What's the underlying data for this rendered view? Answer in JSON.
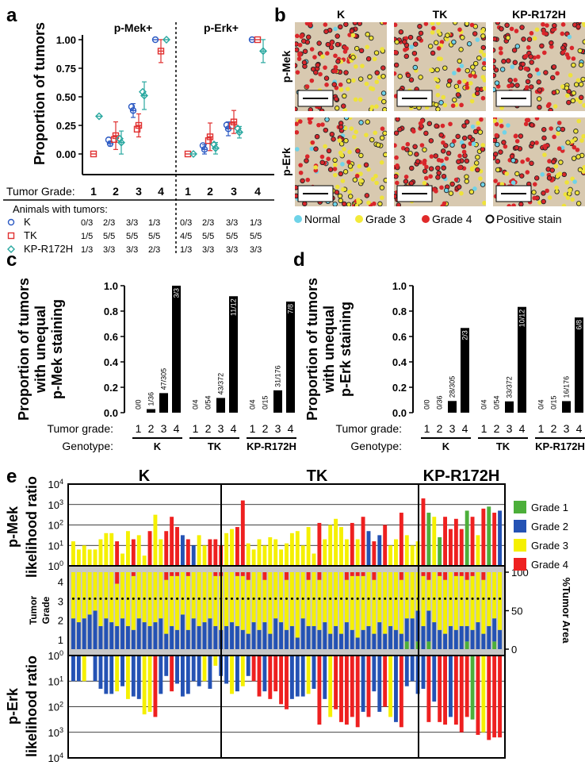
{
  "panels": {
    "a": "a",
    "b": "b",
    "c": "c",
    "d": "d",
    "e": "e"
  },
  "chart_data": [
    {
      "id": "a",
      "type": "scatter",
      "ylabel": "Proportion of tumors",
      "groups": [
        "p-Mek+",
        "p-Erk+"
      ],
      "yticks": [
        "0.00",
        "0.25",
        "0.50",
        "0.75",
        "1.00"
      ],
      "ylim": [
        0,
        1.08
      ],
      "tumor_grade_label": "Tumor Grade:",
      "grades": [
        "1",
        "2",
        "3",
        "4"
      ],
      "animals_label": "Animals with tumors:",
      "series": [
        {
          "name": "K",
          "color": "#2b59c3",
          "marker": "circle",
          "mek": [
            null,
            0.09,
            0.38,
            1.0
          ],
          "erk": [
            null,
            0.04,
            0.22,
            1.0
          ],
          "mek_err": [
            0,
            0.02,
            0.06,
            0
          ],
          "erk_err": [
            0,
            0.04,
            0.06,
            0
          ],
          "counts_mek": [
            "0/3",
            "2/3",
            "3/3",
            "1/3"
          ],
          "counts_erk": [
            "0/3",
            "2/3",
            "3/3",
            "1/3"
          ]
        },
        {
          "name": "TK",
          "color": "#e03030",
          "marker": "square",
          "mek": [
            0.0,
            0.16,
            0.25,
            0.9
          ],
          "erk": [
            0.0,
            0.15,
            0.28,
            1.0
          ],
          "mek_err": [
            0,
            0.12,
            0.1,
            0.1
          ],
          "erk_err": [
            0,
            0.12,
            0.1,
            0
          ],
          "counts_mek": [
            "1/5",
            "5/5",
            "5/5",
            "5/5"
          ],
          "counts_erk": [
            "4/5",
            "5/5",
            "5/5",
            "5/5"
          ]
        },
        {
          "name": "KP-R172H",
          "color": "#2aa8a0",
          "marker": "diamond",
          "mek": [
            0.33,
            0.1,
            0.51,
            1.0
          ],
          "erk": [
            0.0,
            0.05,
            0.19,
            0.9
          ],
          "mek_err": [
            0,
            0.1,
            0.12,
            0
          ],
          "erk_err": [
            0,
            0.05,
            0.05,
            0.1
          ],
          "counts_mek": [
            "1/3",
            "3/3",
            "3/3",
            "2/3"
          ],
          "counts_erk": [
            "1/3",
            "3/3",
            "3/3",
            "3/3"
          ]
        }
      ]
    },
    {
      "id": "c",
      "type": "bar",
      "ylabel": [
        "Proportion of tumors",
        "with unequal",
        "p-Mek staining"
      ],
      "yticks": [
        "0.0",
        "0.2",
        "0.4",
        "0.6",
        "0.8",
        "1.0"
      ],
      "ylim": [
        0,
        1.0
      ],
      "xlabel_grade": "Tumor grade:",
      "xlabel_genotype": "Genotype:",
      "genotypes": [
        "K",
        "TK",
        "KP-R172H"
      ],
      "grades": [
        "1",
        "2",
        "3",
        "4"
      ],
      "values": [
        [
          0,
          0.028,
          0.154,
          1.0
        ],
        [
          0,
          0,
          0.116,
          0.917
        ],
        [
          0,
          0,
          0.176,
          0.875
        ]
      ],
      "labels": [
        [
          "0/0",
          "1/36",
          "47/305",
          "3/3"
        ],
        [
          "0/4",
          "0/54",
          "43/372",
          "11/12"
        ],
        [
          "0/4",
          "0/15",
          "31/176",
          "7/8"
        ]
      ]
    },
    {
      "id": "d",
      "type": "bar",
      "ylabel": [
        "Proportion of tumors",
        "with unequal",
        "p-Erk staining"
      ],
      "yticks": [
        "0.0",
        "0.2",
        "0.4",
        "0.6",
        "0.8",
        "1.0"
      ],
      "ylim": [
        0,
        1.0
      ],
      "xlabel_grade": "Tumor grade:",
      "xlabel_genotype": "Genotype:",
      "genotypes": [
        "K",
        "TK",
        "KP-R172H"
      ],
      "grades": [
        "1",
        "2",
        "3",
        "4"
      ],
      "values": [
        [
          0,
          0,
          0.092,
          0.667
        ],
        [
          0,
          0,
          0.089,
          0.833
        ],
        [
          0,
          0,
          0.091,
          0.75
        ]
      ],
      "labels": [
        [
          "0/0",
          "0/36",
          "28/305",
          "2/3"
        ],
        [
          "0/4",
          "0/54",
          "33/372",
          "10/12"
        ],
        [
          "0/4",
          "0/15",
          "16/176",
          "6/8"
        ]
      ]
    },
    {
      "id": "e",
      "type": "bar",
      "columns": [
        "K",
        "TK",
        "KP-R172H"
      ],
      "top_ylabel": [
        "p-Mek",
        "likelihood ratio"
      ],
      "mid_ylabel": [
        "Tumor",
        "Grade"
      ],
      "bot_ylabel": [
        "p-Erk",
        "likelihood ratio"
      ],
      "right_ylabel": "%Tumor Area",
      "top_ticks": [
        "10^0",
        "10^1",
        "10^2",
        "10^3",
        "10^4"
      ],
      "bot_ticks": [
        "10^0",
        "10^1",
        "10^2",
        "10^3",
        "10^4"
      ],
      "mid_ticks": [
        "1",
        "2",
        "3",
        "4"
      ],
      "right_ticks": [
        "0",
        "50",
        "100"
      ],
      "legend": [
        "Grade 1",
        "Grade 2",
        "Grade 3",
        "Grade 4"
      ],
      "grade_colors": [
        "#4caf3a",
        "#2452b4",
        "#f5f000",
        "#ee2020"
      ],
      "mek_log": [
        1.2,
        0.8,
        1.0,
        0.8,
        0.8,
        1.3,
        1.6,
        1.6,
        1.2,
        0.6,
        1.7,
        1.3,
        1.5,
        0.5,
        1.7,
        2.5,
        1.3,
        1.7,
        2.4,
        1.9,
        1.5,
        1.3,
        1.0,
        1.5,
        1.0,
        1.3,
        1.3,
        1.0,
        1.6,
        1.8,
        1.9,
        3.2,
        1.1,
        0.8,
        1.3,
        1.0,
        1.4,
        1.3,
        0.8,
        1.1,
        1.6,
        1.7,
        1.0,
        1.9,
        0.6,
        2.1,
        1.3,
        2.0,
        2.3,
        1.9,
        1.3,
        2.1,
        1.3,
        2.4,
        1.7,
        1.2,
        1.5,
        2.0,
        1.0,
        1.3,
        2.6,
        1.5,
        1.0,
        1.2,
        3.3,
        2.6,
        2.4,
        1.4,
        2.4,
        1.8,
        2.3,
        1.8,
        2.7,
        2.4,
        1.5,
        2.8,
        2.9,
        2.6,
        2.7
      ],
      "mek_grade": [
        2,
        2,
        2,
        2,
        2,
        2,
        2,
        2,
        3,
        2,
        2,
        3,
        2,
        2,
        3,
        2,
        2,
        3,
        3,
        3,
        1,
        3,
        1,
        2,
        2,
        3,
        3,
        3,
        2,
        2,
        3,
        3,
        2,
        2,
        2,
        2,
        2,
        2,
        2,
        2,
        2,
        2,
        2,
        2,
        2,
        3,
        2,
        2,
        2,
        2,
        2,
        3,
        2,
        3,
        1,
        3,
        1,
        3,
        2,
        2,
        3,
        2,
        2,
        2,
        3,
        0,
        2,
        0,
        3,
        3,
        3,
        3,
        0,
        3,
        2,
        3,
        0,
        3,
        1
      ],
      "erk_log": [
        1.0,
        1.0,
        1.0,
        0.0,
        1.0,
        1.3,
        1.5,
        1.5,
        1.4,
        1.2,
        1.7,
        1.6,
        1.7,
        2.3,
        2.2,
        2.4,
        1.5,
        0.8,
        1.4,
        1.1,
        1.6,
        1.5,
        1.0,
        1.2,
        1.0,
        1.3,
        0.4,
        0.8,
        1.1,
        1.5,
        1.4,
        1.2,
        0.8,
        1.0,
        1.6,
        1.4,
        1.7,
        1.4,
        1.9,
        2.1,
        1.7,
        1.6,
        1.6,
        1.5,
        1.3,
        2.7,
        1.7,
        2.4,
        2.1,
        2.6,
        2.7,
        2.4,
        2.8,
        2.2,
        2.4,
        1.4,
        2.2,
        2.0,
        2.4,
        2.6,
        2.8,
        1.2,
        1.0,
        1.5,
        1.3,
        2.6,
        1.8,
        2.6,
        2.7,
        2.4,
        2.7,
        3.0,
        2.4,
        2.5,
        3.1,
        3.0,
        3.3,
        3.2,
        3.2
      ],
      "erk_grade": [
        1,
        1,
        2,
        1,
        1,
        1,
        1,
        1,
        2,
        1,
        2,
        1,
        1,
        2,
        2,
        3,
        1,
        1,
        3,
        1,
        1,
        1,
        1,
        1,
        2,
        1,
        2,
        1,
        1,
        2,
        1,
        2,
        1,
        3,
        3,
        1,
        3,
        3,
        3,
        3,
        1,
        1,
        1,
        2,
        1,
        3,
        1,
        2,
        3,
        3,
        3,
        3,
        3,
        1,
        3,
        1,
        1,
        3,
        2,
        1,
        3,
        1,
        1,
        1,
        1,
        3,
        1,
        3,
        3,
        1,
        3,
        3,
        3,
        0,
        3,
        2,
        3,
        3,
        3
      ],
      "grade_stack": [
        [
          0,
          40,
          60,
          0
        ],
        [
          0,
          35,
          65,
          0
        ],
        [
          0,
          40,
          60,
          0
        ],
        [
          0,
          45,
          55,
          0
        ],
        [
          0,
          50,
          50,
          0
        ],
        [
          0,
          30,
          70,
          0
        ],
        [
          0,
          40,
          60,
          0
        ],
        [
          0,
          35,
          65,
          0
        ],
        [
          0,
          30,
          55,
          15
        ],
        [
          0,
          40,
          60,
          0
        ],
        [
          0,
          30,
          70,
          0
        ],
        [
          0,
          25,
          70,
          5
        ],
        [
          0,
          40,
          60,
          0
        ],
        [
          0,
          35,
          65,
          0
        ],
        [
          0,
          30,
          70,
          0
        ],
        [
          0,
          35,
          65,
          0
        ],
        [
          0,
          40,
          60,
          0
        ],
        [
          0,
          20,
          70,
          10
        ],
        [
          0,
          30,
          65,
          5
        ],
        [
          0,
          25,
          70,
          5
        ],
        [
          0,
          45,
          55,
          0
        ],
        [
          0,
          25,
          70,
          5
        ],
        [
          0,
          40,
          60,
          0
        ],
        [
          0,
          30,
          70,
          0
        ],
        [
          0,
          35,
          65,
          0
        ],
        [
          0,
          40,
          60,
          0
        ],
        [
          0,
          30,
          65,
          5
        ],
        [
          0,
          25,
          70,
          5
        ],
        [
          0,
          30,
          70,
          0
        ],
        [
          0,
          35,
          65,
          0
        ],
        [
          0,
          30,
          65,
          5
        ],
        [
          0,
          25,
          70,
          5
        ],
        [
          0,
          20,
          70,
          10
        ],
        [
          0,
          35,
          65,
          0
        ],
        [
          0,
          25,
          75,
          0
        ],
        [
          0,
          35,
          55,
          10
        ],
        [
          0,
          20,
          80,
          0
        ],
        [
          0,
          40,
          60,
          0
        ],
        [
          0,
          35,
          65,
          0
        ],
        [
          0,
          25,
          65,
          10
        ],
        [
          0,
          30,
          70,
          0
        ],
        [
          0,
          15,
          85,
          0
        ],
        [
          0,
          40,
          60,
          0
        ],
        [
          0,
          30,
          60,
          10
        ],
        [
          0,
          30,
          70,
          0
        ],
        [
          0,
          25,
          65,
          10
        ],
        [
          0,
          35,
          65,
          0
        ],
        [
          0,
          20,
          80,
          0
        ],
        [
          0,
          30,
          70,
          0
        ],
        [
          0,
          20,
          80,
          0
        ],
        [
          0,
          35,
          55,
          10
        ],
        [
          0,
          25,
          70,
          5
        ],
        [
          0,
          15,
          80,
          5
        ],
        [
          0,
          25,
          70,
          5
        ],
        [
          0,
          30,
          70,
          0
        ],
        [
          0,
          20,
          70,
          10
        ],
        [
          0,
          35,
          65,
          0
        ],
        [
          0,
          20,
          80,
          0
        ],
        [
          0,
          30,
          70,
          0
        ],
        [
          0,
          25,
          75,
          0
        ],
        [
          0,
          20,
          70,
          10
        ],
        [
          10,
          30,
          60,
          0
        ],
        [
          0,
          40,
          60,
          0
        ],
        [
          10,
          40,
          50,
          0
        ],
        [
          0,
          30,
          65,
          5
        ],
        [
          10,
          40,
          40,
          10
        ],
        [
          0,
          35,
          65,
          0
        ],
        [
          0,
          25,
          70,
          5
        ],
        [
          0,
          20,
          70,
          10
        ],
        [
          0,
          30,
          70,
          0
        ],
        [
          0,
          25,
          70,
          5
        ],
        [
          0,
          30,
          65,
          5
        ],
        [
          10,
          20,
          60,
          10
        ],
        [
          0,
          25,
          70,
          5
        ],
        [
          0,
          35,
          65,
          0
        ],
        [
          0,
          20,
          70,
          10
        ],
        [
          0,
          30,
          70,
          0
        ],
        [
          10,
          30,
          60,
          0
        ],
        [
          0,
          25,
          75,
          0
        ]
      ],
      "grade_dot": 3
    }
  ],
  "panel_b": {
    "columns": [
      "K",
      "TK",
      "KP-R172H"
    ],
    "rows": [
      "p-Mek",
      "p-Erk"
    ],
    "legend": [
      "Normal",
      "Grade 3",
      "Grade 4",
      "Positive stain"
    ],
    "legend_colors": [
      "#6fd3e8",
      "#f3ea3a",
      "#e02a2a",
      "#111111"
    ]
  }
}
